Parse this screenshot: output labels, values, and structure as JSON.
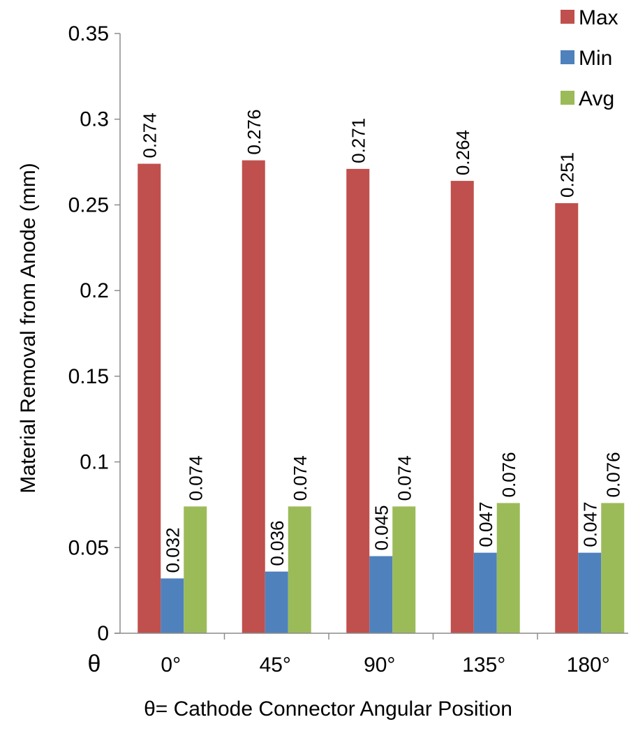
{
  "chart_data": {
    "type": "bar",
    "categories": [
      "0°",
      "45°",
      "90°",
      "135°",
      "180°"
    ],
    "series": [
      {
        "name": "Max",
        "color": "#c0504d",
        "values": [
          0.274,
          0.276,
          0.271,
          0.264,
          0.251
        ],
        "labels": [
          "0.274",
          "0.276",
          "0.271",
          "0.264",
          "0.251"
        ]
      },
      {
        "name": "Min",
        "color": "#4f81bd",
        "values": [
          0.032,
          0.036,
          0.045,
          0.047,
          0.047
        ],
        "labels": [
          "0.032",
          "0.036",
          "0.045",
          "0.047",
          "0.047"
        ]
      },
      {
        "name": "Avg",
        "color": "#9bbb59",
        "values": [
          0.074,
          0.074,
          0.074,
          0.076,
          0.076
        ],
        "labels": [
          "0.074",
          "0.074",
          "0.074",
          "0.076",
          "0.076"
        ]
      }
    ],
    "yticks": [
      "0",
      "0.05",
      "0.1",
      "0.15",
      "0.2",
      "0.25",
      "0.3",
      "0.35"
    ],
    "ylim": [
      0,
      0.35
    ],
    "ylabel": "Material Removal from Anode (mm)",
    "xlabel": "θ= Cathode Connector Angular Position",
    "x_axis_symbol": "θ",
    "grid": false,
    "legend_position": "top-right"
  }
}
